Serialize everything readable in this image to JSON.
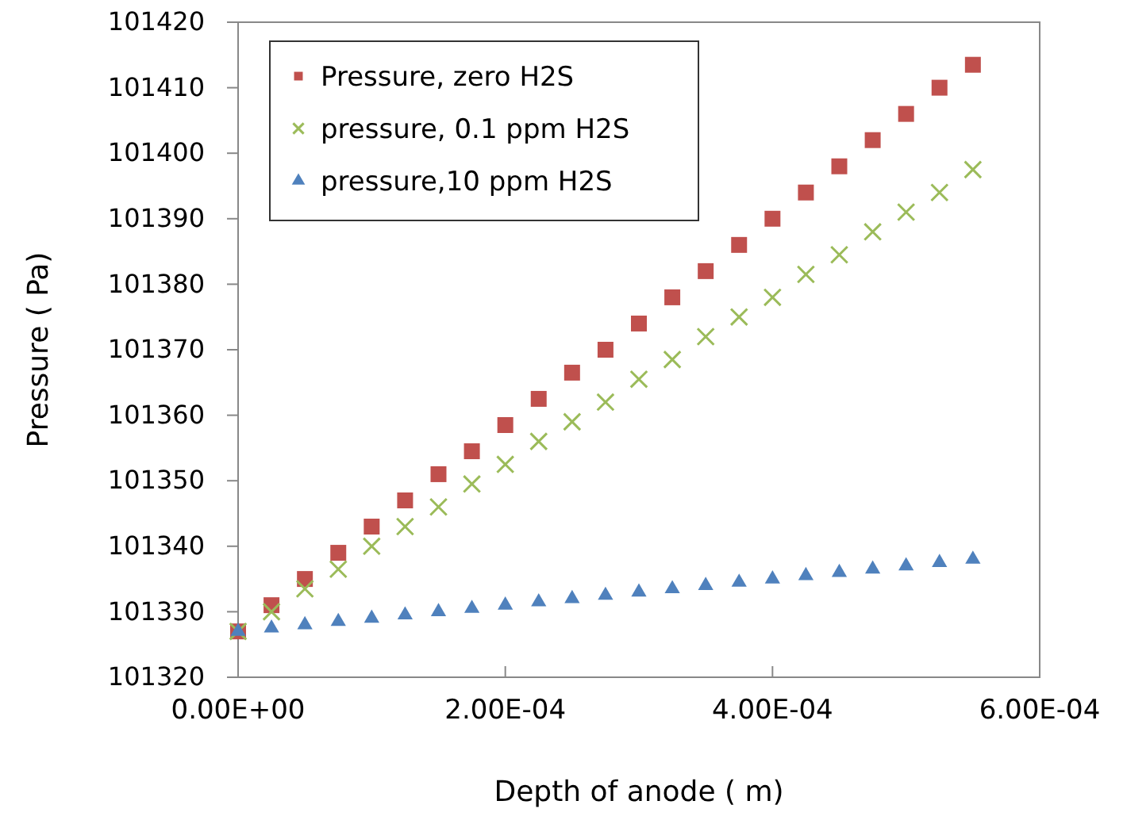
{
  "chart_data": {
    "type": "scatter",
    "xlabel": "Depth of anode ( m)",
    "ylabel": "Pressure ( Pa)",
    "x": [
      0,
      2.5e-05,
      5e-05,
      7.5e-05,
      0.0001,
      0.000125,
      0.00015,
      0.000175,
      0.0002,
      0.000225,
      0.00025,
      0.000275,
      0.0003,
      0.000325,
      0.00035,
      0.000375,
      0.0004,
      0.000425,
      0.00045,
      0.000475,
      0.0005,
      0.000525,
      0.00055
    ],
    "series": [
      {
        "name": "Pressure, zero H2S",
        "color": "#c0504d",
        "marker": "square",
        "values": [
          101327,
          101331,
          101335,
          101339,
          101343,
          101347,
          101351,
          101354.5,
          101358.5,
          101362.5,
          101366.5,
          101370,
          101374,
          101378,
          101382,
          101386,
          101390,
          101394,
          101398,
          101402,
          101406,
          101410,
          101413.5
        ]
      },
      {
        "name": "pressure, 0.1 ppm H2S",
        "color": "#9bbb59",
        "marker": "cross",
        "values": [
          101327,
          101330,
          101333.5,
          101336.5,
          101340,
          101343,
          101346,
          101349.5,
          101352.5,
          101356,
          101359,
          101362,
          101365.5,
          101368.5,
          101372,
          101375,
          101378,
          101381.5,
          101384.5,
          101388,
          101391,
          101394,
          101397.5
        ]
      },
      {
        "name": "pressure,10 ppm H2S",
        "color": "#4f81bd",
        "marker": "triangle",
        "values": [
          101327,
          101327.5,
          101328,
          101328.5,
          101329,
          101329.5,
          101330,
          101330.5,
          101331,
          101331.5,
          101332,
          101332.5,
          101333,
          101333.5,
          101334,
          101334.5,
          101335,
          101335.5,
          101336,
          101336.5,
          101337,
          101337.5,
          101338
        ]
      }
    ],
    "xlim": [
      0,
      0.0006
    ],
    "xticks": [
      {
        "value": 0,
        "label": "0.00E+00"
      },
      {
        "value": 0.0002,
        "label": "2.00E-04"
      },
      {
        "value": 0.0004,
        "label": "4.00E-04"
      },
      {
        "value": 0.0006,
        "label": "6.00E-04"
      }
    ],
    "ylim": [
      101320,
      101420
    ],
    "yticks": [
      101320,
      101330,
      101340,
      101350,
      101360,
      101370,
      101380,
      101390,
      101400,
      101410,
      101420
    ],
    "grid": false,
    "legend": "top left"
  }
}
